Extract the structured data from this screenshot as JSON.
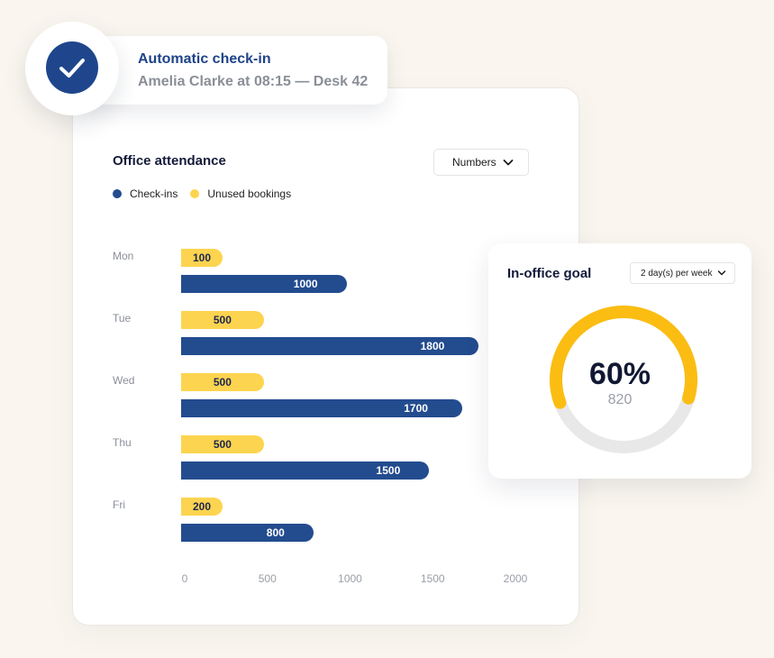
{
  "notification": {
    "title": "Automatic check-in",
    "subtitle": "Amelia Clarke at 08:15 — Desk 42",
    "icon": "checkmark-icon",
    "accent": "#1f468c"
  },
  "attendance": {
    "title": "Office attendance",
    "dropdown_label": "Numbers",
    "legend": [
      {
        "label": "Check-ins",
        "color": "#234c8f"
      },
      {
        "label": "Unused bookings",
        "color": "#fdd44f"
      }
    ]
  },
  "chart_data": {
    "type": "bar",
    "orientation": "horizontal",
    "categories": [
      "Mon",
      "Tue",
      "Wed",
      "Thu",
      "Fri"
    ],
    "series": [
      {
        "name": "Unused bookings",
        "color": "#fdd44f",
        "values": [
          100,
          500,
          500,
          500,
          200
        ]
      },
      {
        "name": "Check-ins",
        "color": "#234c8f",
        "values": [
          1000,
          1800,
          1700,
          1500,
          800
        ]
      }
    ],
    "xticks": [
      0,
      500,
      1000,
      1500,
      2000
    ],
    "xlim": [
      0,
      2000
    ],
    "grid": false,
    "legend_position": "top-left"
  },
  "goal": {
    "title": "In-office goal",
    "dropdown_label": "2 day(s) per week",
    "percent_label": "60%",
    "percent": 60,
    "count": "820",
    "ring_color": "#fbbd12",
    "track_color": "#e8e8e8"
  }
}
